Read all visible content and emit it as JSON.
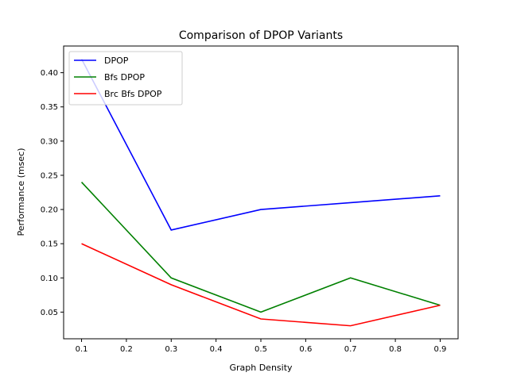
{
  "chart_data": {
    "type": "line",
    "title": "Comparison of DPOP Variants",
    "xlabel": "Graph Density",
    "ylabel": "Performance (msec)",
    "x": [
      0.1,
      0.3,
      0.5,
      0.7,
      0.9
    ],
    "xlim": [
      0.06,
      0.94
    ],
    "ylim": [
      0.011,
      0.439
    ],
    "xticks": [
      "0.1",
      "0.2",
      "0.3",
      "0.4",
      "0.5",
      "0.6",
      "0.7",
      "0.8",
      "0.9"
    ],
    "yticks": [
      "0.05",
      "0.10",
      "0.15",
      "0.20",
      "0.25",
      "0.30",
      "0.35",
      "0.40"
    ],
    "grid": false,
    "legend_position": "top-left",
    "series": [
      {
        "name": "DPOP",
        "color": "#0000ff",
        "values": [
          0.42,
          0.17,
          0.2,
          0.21,
          0.22
        ]
      },
      {
        "name": "Bfs DPOP",
        "color": "#008000",
        "values": [
          0.24,
          0.1,
          0.05,
          0.1,
          0.06
        ]
      },
      {
        "name": "Brc Bfs DPOP",
        "color": "#ff0000",
        "values": [
          0.15,
          0.09,
          0.04,
          0.03,
          0.06
        ]
      }
    ]
  }
}
